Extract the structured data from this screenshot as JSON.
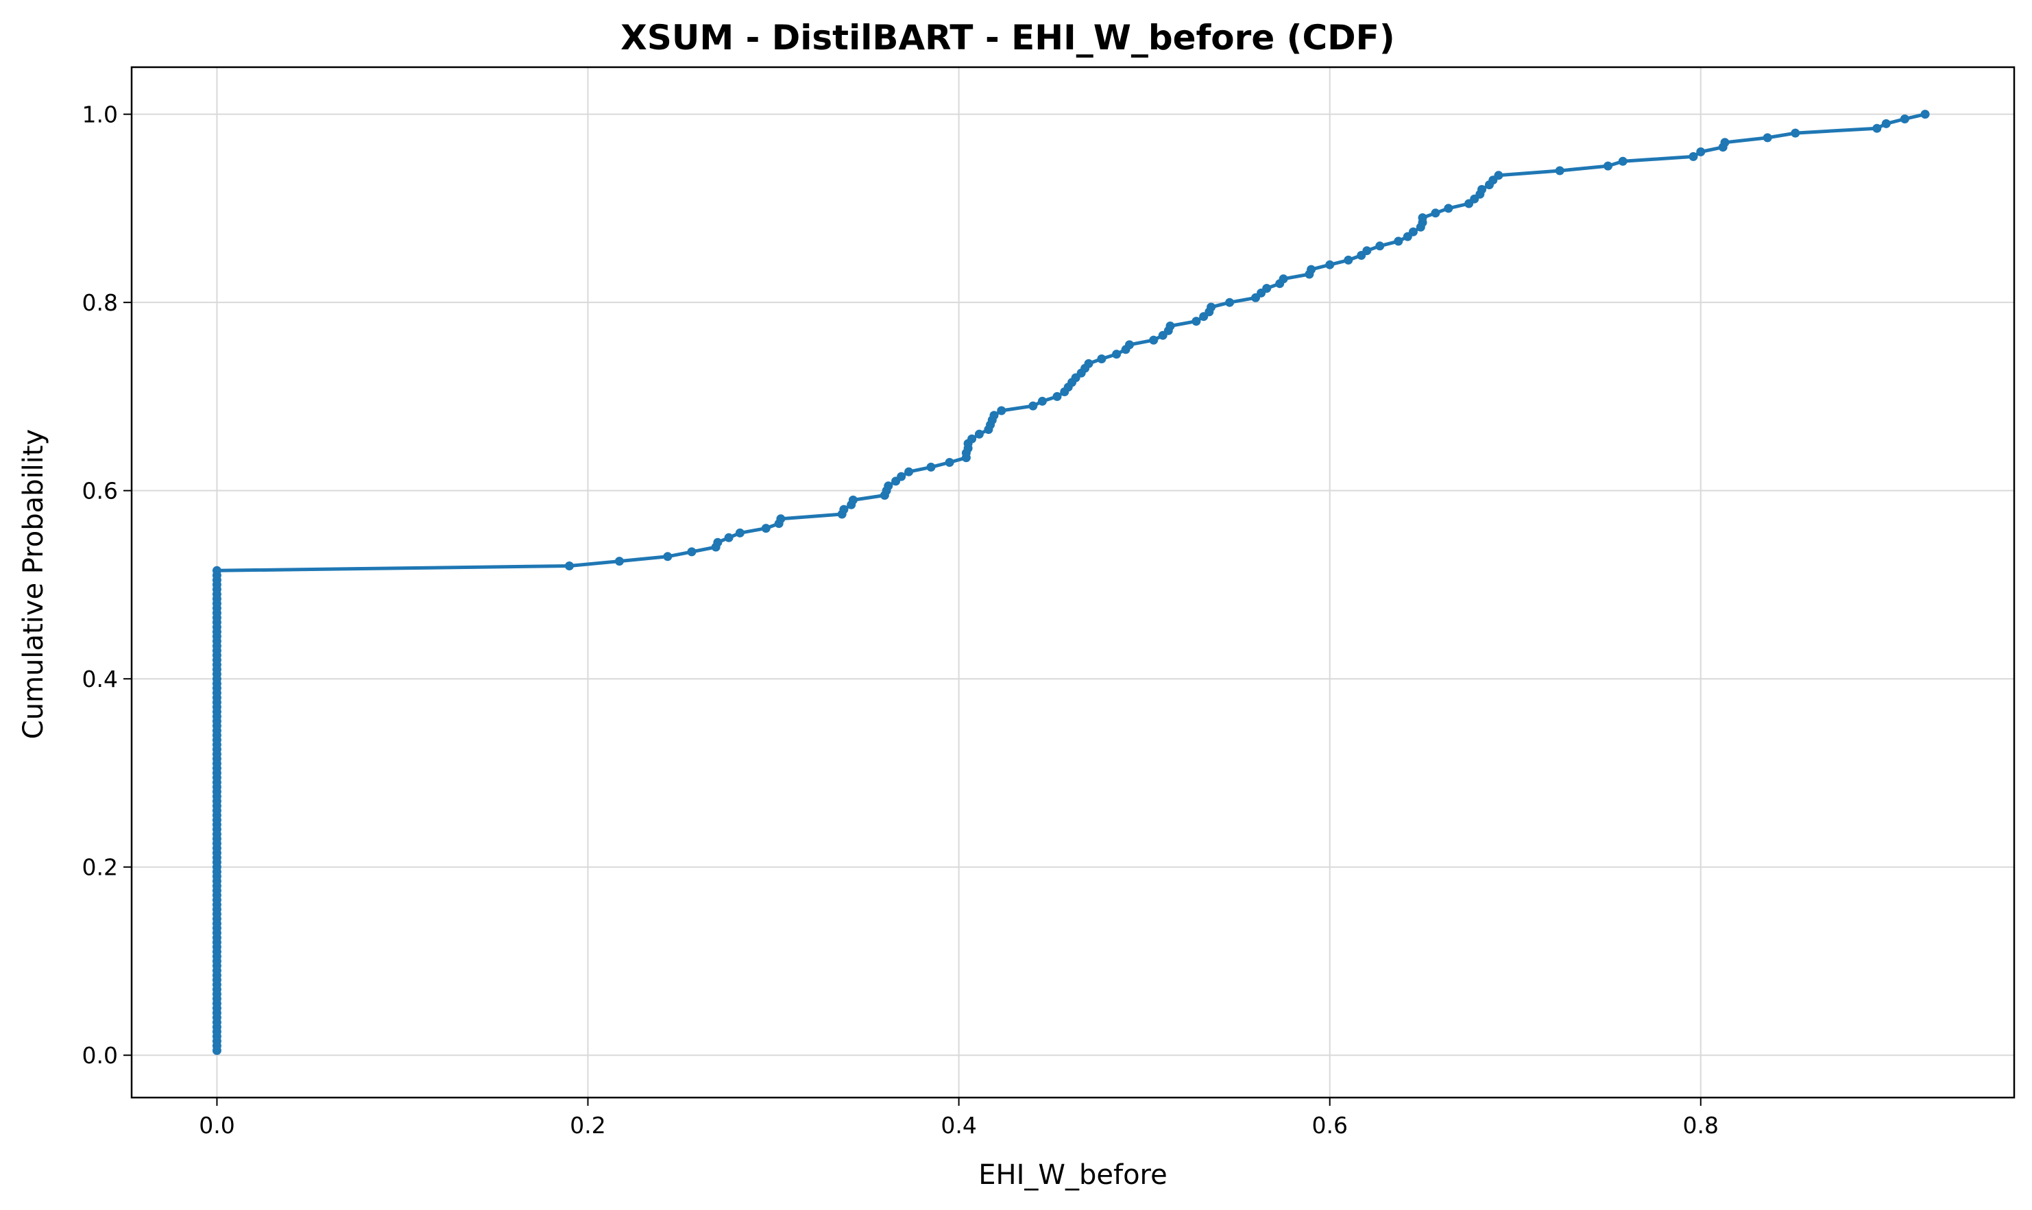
{
  "chart_data": {
    "type": "line",
    "title": "XSUM - DistilBART - EHI_W_before (CDF)",
    "xlabel": "EHI_W_before",
    "ylabel": "Cumulative Probability",
    "xlim": [
      -0.046,
      0.969
    ],
    "ylim": [
      -0.045,
      1.05
    ],
    "xticks": [
      0.0,
      0.2,
      0.4,
      0.6,
      0.8
    ],
    "xtick_labels": [
      "0.0",
      "0.2",
      "0.4",
      "0.6",
      "0.8"
    ],
    "yticks": [
      0.0,
      0.2,
      0.4,
      0.6,
      0.8,
      1.0
    ],
    "ytick_labels": [
      "0.0",
      "0.2",
      "0.4",
      "0.6",
      "0.8",
      "1.0"
    ],
    "grid": true,
    "legend": "none",
    "color": "#1f77b4",
    "n_zero_points": 103,
    "zero_x": 0.0,
    "zero_step": 0.005,
    "series": [
      {
        "points": [
          [
            0.19,
            0.52
          ],
          [
            0.217,
            0.525
          ],
          [
            0.243,
            0.53
          ],
          [
            0.256,
            0.535
          ],
          [
            0.269,
            0.54
          ],
          [
            0.27,
            0.545
          ],
          [
            0.276,
            0.55
          ],
          [
            0.282,
            0.555
          ],
          [
            0.296,
            0.56
          ],
          [
            0.303,
            0.565
          ],
          [
            0.304,
            0.57
          ],
          [
            0.337,
            0.575
          ],
          [
            0.338,
            0.58
          ],
          [
            0.342,
            0.585
          ],
          [
            0.343,
            0.59
          ],
          [
            0.36,
            0.595
          ],
          [
            0.361,
            0.6
          ],
          [
            0.362,
            0.605
          ],
          [
            0.366,
            0.61
          ],
          [
            0.369,
            0.615
          ],
          [
            0.373,
            0.62
          ],
          [
            0.385,
            0.625
          ],
          [
            0.395,
            0.63
          ],
          [
            0.404,
            0.635
          ],
          [
            0.404,
            0.64
          ],
          [
            0.405,
            0.645
          ],
          [
            0.405,
            0.65
          ],
          [
            0.407,
            0.655
          ],
          [
            0.411,
            0.66
          ],
          [
            0.416,
            0.665
          ],
          [
            0.417,
            0.67
          ],
          [
            0.418,
            0.675
          ],
          [
            0.419,
            0.68
          ],
          [
            0.423,
            0.685
          ],
          [
            0.44,
            0.69
          ],
          [
            0.445,
            0.695
          ],
          [
            0.453,
            0.7
          ],
          [
            0.457,
            0.705
          ],
          [
            0.459,
            0.71
          ],
          [
            0.461,
            0.715
          ],
          [
            0.463,
            0.72
          ],
          [
            0.466,
            0.725
          ],
          [
            0.468,
            0.73
          ],
          [
            0.47,
            0.735
          ],
          [
            0.477,
            0.74
          ],
          [
            0.485,
            0.745
          ],
          [
            0.49,
            0.75
          ],
          [
            0.492,
            0.755
          ],
          [
            0.505,
            0.76
          ],
          [
            0.51,
            0.765
          ],
          [
            0.513,
            0.77
          ],
          [
            0.514,
            0.775
          ],
          [
            0.528,
            0.78
          ],
          [
            0.532,
            0.785
          ],
          [
            0.535,
            0.79
          ],
          [
            0.536,
            0.795
          ],
          [
            0.546,
            0.8
          ],
          [
            0.56,
            0.805
          ],
          [
            0.563,
            0.81
          ],
          [
            0.566,
            0.815
          ],
          [
            0.573,
            0.82
          ],
          [
            0.575,
            0.825
          ],
          [
            0.589,
            0.83
          ],
          [
            0.59,
            0.835
          ],
          [
            0.6,
            0.84
          ],
          [
            0.61,
            0.845
          ],
          [
            0.617,
            0.85
          ],
          [
            0.62,
            0.855
          ],
          [
            0.627,
            0.86
          ],
          [
            0.637,
            0.865
          ],
          [
            0.642,
            0.87
          ],
          [
            0.645,
            0.875
          ],
          [
            0.649,
            0.88
          ],
          [
            0.65,
            0.885
          ],
          [
            0.65,
            0.89
          ],
          [
            0.657,
            0.895
          ],
          [
            0.664,
            0.9
          ],
          [
            0.675,
            0.905
          ],
          [
            0.678,
            0.91
          ],
          [
            0.681,
            0.915
          ],
          [
            0.682,
            0.92
          ],
          [
            0.686,
            0.925
          ],
          [
            0.688,
            0.93
          ],
          [
            0.691,
            0.935
          ],
          [
            0.724,
            0.94
          ],
          [
            0.75,
            0.945
          ],
          [
            0.758,
            0.95
          ],
          [
            0.796,
            0.955
          ],
          [
            0.8,
            0.96
          ],
          [
            0.812,
            0.965
          ],
          [
            0.813,
            0.97
          ],
          [
            0.836,
            0.975
          ],
          [
            0.851,
            0.98
          ],
          [
            0.895,
            0.985
          ],
          [
            0.9,
            0.99
          ],
          [
            0.91,
            0.995
          ],
          [
            0.921,
            1.0
          ]
        ]
      }
    ]
  }
}
